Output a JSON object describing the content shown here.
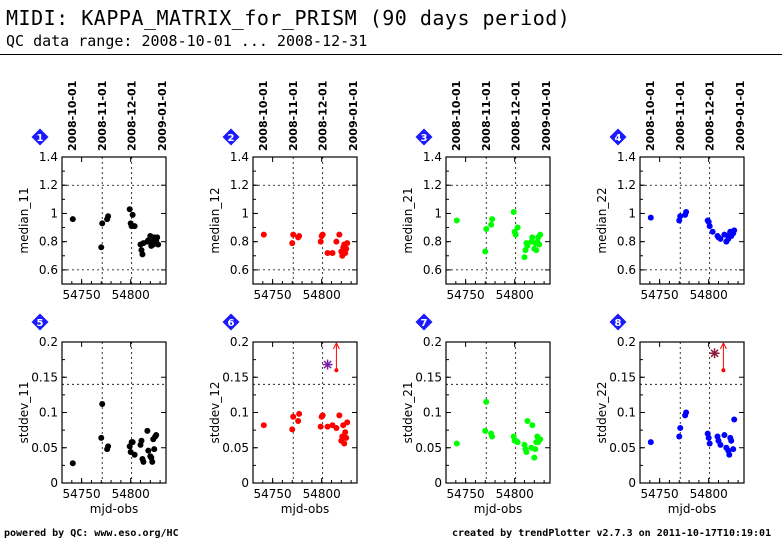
{
  "header": {
    "title": "MIDI: KAPPA_MATRIX_for_PRISM (90 days period)",
    "subtitle": "QC data range: 2008-10-01 ... 2008-12-31"
  },
  "footer": {
    "left": "powered by QC: www.eso.org/HC",
    "right": "created by trendPlotter v2.7.3 on 2011-10-17T10:19:01"
  },
  "colors": {
    "black": "#000000",
    "red": "#ff0000",
    "green": "#00ff00",
    "blue": "#0000ff",
    "badge": "#1a1aff",
    "purple": "#7a1fa2",
    "maroon": "#8b1c3a"
  },
  "chart_data": [
    {
      "type": "scatter",
      "index": "1",
      "ylabel": "median_11",
      "color": "#000000",
      "top_ticks": [
        "2008-10-01",
        "2008-11-01",
        "2008-12-01",
        "2009-01-01"
      ],
      "top_tick_x": [
        54740,
        54771,
        54801,
        54832
      ],
      "xlim": [
        54730,
        54836
      ],
      "ylim": [
        0.5,
        1.4
      ],
      "yticks": [
        0.6,
        0.8,
        1,
        1.2,
        1.4
      ],
      "yticklabels": [
        "0.6",
        "0.8",
        "1",
        "1.2",
        "1.4"
      ],
      "xticks": [
        54750,
        54800
      ],
      "xticklabels": [
        "54750",
        "54800"
      ],
      "dashed_y": [
        0.6,
        1.2
      ],
      "show_xlabel": false,
      "x": [
        54741,
        54770,
        54771,
        54776,
        54777,
        54799,
        54800,
        54801,
        54802,
        54804,
        54810,
        54811,
        54812,
        54813,
        54817,
        54818,
        54820,
        54821,
        54822,
        54823,
        54824,
        54825,
        54826,
        54827,
        54828
      ],
      "y": [
        0.96,
        0.76,
        0.93,
        0.96,
        0.98,
        1.03,
        0.93,
        0.91,
        0.99,
        0.91,
        0.78,
        0.74,
        0.71,
        0.79,
        0.8,
        0.81,
        0.84,
        0.77,
        0.8,
        0.78,
        0.83,
        0.79,
        0.81,
        0.83,
        0.78
      ]
    },
    {
      "type": "scatter",
      "index": "2",
      "ylabel": "median_12",
      "color": "#ff0000",
      "top_ticks": [
        "2008-10-01",
        "2008-11-01",
        "2008-12-01",
        "2009-01-01"
      ],
      "top_tick_x": [
        54740,
        54771,
        54801,
        54832
      ],
      "xlim": [
        54730,
        54836
      ],
      "ylim": [
        0.5,
        1.4
      ],
      "yticks": [
        0.6,
        0.8,
        1,
        1.2,
        1.4
      ],
      "yticklabels": [
        "0.6",
        "0.8",
        "1",
        "1.2",
        "1.4"
      ],
      "xticks": [
        54750,
        54800
      ],
      "xticklabels": [
        "54750",
        "54800"
      ],
      "dashed_y": [
        0.6,
        1.2
      ],
      "show_xlabel": false,
      "x": [
        54741,
        54770,
        54771,
        54776,
        54777,
        54799,
        54800,
        54801,
        54806,
        54811,
        54815,
        54818,
        54820,
        54821,
        54822,
        54823,
        54824,
        54825,
        54826
      ],
      "y": [
        0.85,
        0.79,
        0.85,
        0.83,
        0.84,
        0.8,
        0.84,
        0.85,
        0.72,
        0.72,
        0.8,
        0.85,
        0.73,
        0.7,
        0.76,
        0.78,
        0.72,
        0.75,
        0.79
      ]
    },
    {
      "type": "scatter",
      "index": "3",
      "ylabel": "median_21",
      "color": "#00ff00",
      "top_ticks": [
        "2008-10-01",
        "2008-11-01",
        "2008-12-01",
        "2009-01-01"
      ],
      "top_tick_x": [
        54740,
        54771,
        54801,
        54832
      ],
      "xlim": [
        54730,
        54836
      ],
      "ylim": [
        0.5,
        1.4
      ],
      "yticks": [
        0.6,
        0.8,
        1,
        1.2,
        1.4
      ],
      "yticklabels": [
        "0.6",
        "0.8",
        "1",
        "1.2",
        "1.4"
      ],
      "xticks": [
        54750,
        54800
      ],
      "xticklabels": [
        "54750",
        "54800"
      ],
      "dashed_y": [
        0.6,
        1.2
      ],
      "show_xlabel": false,
      "x": [
        54741,
        54770,
        54771,
        54776,
        54777,
        54799,
        54800,
        54801,
        54803,
        54810,
        54811,
        54812,
        54813,
        54817,
        54818,
        54820,
        54821,
        54822,
        54823,
        54824,
        54825,
        54826
      ],
      "y": [
        0.95,
        0.73,
        0.89,
        0.92,
        0.96,
        1.01,
        0.87,
        0.85,
        0.9,
        0.69,
        0.74,
        0.79,
        0.77,
        0.8,
        0.83,
        0.75,
        0.79,
        0.74,
        0.8,
        0.83,
        0.78,
        0.85
      ]
    },
    {
      "type": "scatter",
      "index": "4",
      "ylabel": "median_22",
      "color": "#0000ff",
      "top_ticks": [
        "2008-10-01",
        "2008-11-01",
        "2008-12-01",
        "2009-01-01"
      ],
      "top_tick_x": [
        54740,
        54771,
        54801,
        54832
      ],
      "xlim": [
        54730,
        54836
      ],
      "ylim": [
        0.5,
        1.4
      ],
      "yticks": [
        0.6,
        0.8,
        1,
        1.2,
        1.4
      ],
      "yticklabels": [
        "0.6",
        "0.8",
        "1",
        "1.2",
        "1.4"
      ],
      "xticks": [
        54750,
        54800
      ],
      "xticklabels": [
        "54750",
        "54800"
      ],
      "dashed_y": [
        0.6,
        1.2
      ],
      "show_xlabel": false,
      "x": [
        54741,
        54770,
        54771,
        54776,
        54777,
        54799,
        54800,
        54801,
        54804,
        54809,
        54810,
        54812,
        54816,
        54818,
        54820,
        54821,
        54822,
        54823,
        54825,
        54826
      ],
      "y": [
        0.97,
        0.95,
        0.98,
        0.99,
        1.01,
        0.95,
        0.94,
        0.91,
        0.87,
        0.84,
        0.83,
        0.82,
        0.85,
        0.8,
        0.82,
        0.85,
        0.87,
        0.84,
        0.86,
        0.88
      ]
    },
    {
      "type": "scatter",
      "index": "5",
      "ylabel": "stddev_11",
      "xlabel": "mjd-obs",
      "color": "#000000",
      "xlim": [
        54730,
        54836
      ],
      "ylim": [
        0,
        0.2
      ],
      "yticks": [
        0,
        0.05,
        0.1,
        0.15,
        0.2
      ],
      "yticklabels": [
        "0",
        "0.05",
        "0.1",
        "0.15",
        "0.2"
      ],
      "xticks": [
        54750,
        54800
      ],
      "xticklabels": [
        "54750",
        "54800"
      ],
      "dashed_y": [
        0.14
      ],
      "show_xlabel": true,
      "x": [
        54741,
        54770,
        54771,
        54776,
        54777,
        54799,
        54800,
        54801,
        54802,
        54804,
        54810,
        54811,
        54812,
        54813,
        54817,
        54818,
        54820,
        54821,
        54822,
        54823,
        54824,
        54825,
        54826
      ],
      "y": [
        0.028,
        0.064,
        0.112,
        0.048,
        0.052,
        0.052,
        0.044,
        0.058,
        0.058,
        0.04,
        0.054,
        0.06,
        0.034,
        0.03,
        0.074,
        0.046,
        0.038,
        0.036,
        0.03,
        0.062,
        0.048,
        0.066,
        0.068
      ]
    },
    {
      "type": "scatter",
      "index": "6",
      "ylabel": "stddev_12",
      "xlabel": "mjd-obs",
      "color": "#ff0000",
      "xlim": [
        54730,
        54836
      ],
      "ylim": [
        0,
        0.2
      ],
      "yticks": [
        0,
        0.05,
        0.1,
        0.15,
        0.2
      ],
      "yticklabels": [
        "0",
        "0.05",
        "0.1",
        "0.15",
        "0.2"
      ],
      "xticks": [
        54750,
        54800
      ],
      "xticklabels": [
        "54750",
        "54800"
      ],
      "dashed_y": [
        0.14
      ],
      "show_xlabel": true,
      "x": [
        54741,
        54770,
        54771,
        54776,
        54777,
        54799,
        54800,
        54801,
        54806,
        54811,
        54815,
        54818,
        54820,
        54821,
        54822,
        54823,
        54824,
        54825,
        54826
      ],
      "y": [
        0.082,
        0.076,
        0.094,
        0.088,
        0.098,
        0.08,
        0.094,
        0.096,
        0.08,
        0.082,
        0.078,
        0.096,
        0.06,
        0.066,
        0.082,
        0.056,
        0.072,
        0.064,
        0.086
      ],
      "special_points": [
        {
          "x": 54806,
          "y": 0.168,
          "color": "#7a1fa2"
        }
      ],
      "arrow_up": [
        {
          "x": 54815,
          "y": 0.16
        }
      ]
    },
    {
      "type": "scatter",
      "index": "7",
      "ylabel": "stddev_21",
      "xlabel": "mjd-obs",
      "color": "#00ff00",
      "xlim": [
        54730,
        54836
      ],
      "ylim": [
        0,
        0.2
      ],
      "yticks": [
        0,
        0.05,
        0.1,
        0.15,
        0.2
      ],
      "yticklabels": [
        "0",
        "0.05",
        "0.1",
        "0.15",
        "0.2"
      ],
      "xticks": [
        54750,
        54800
      ],
      "xticklabels": [
        "54750",
        "54800"
      ],
      "dashed_y": [
        0.14
      ],
      "show_xlabel": true,
      "x": [
        54741,
        54770,
        54771,
        54776,
        54777,
        54799,
        54800,
        54801,
        54803,
        54810,
        54811,
        54812,
        54813,
        54817,
        54818,
        54820,
        54821,
        54822,
        54823,
        54824,
        54825,
        54826
      ],
      "y": [
        0.056,
        0.074,
        0.115,
        0.07,
        0.066,
        0.066,
        0.06,
        0.06,
        0.058,
        0.054,
        0.048,
        0.044,
        0.088,
        0.05,
        0.082,
        0.036,
        0.048,
        0.058,
        0.066,
        0.058,
        0.062,
        0.062
      ]
    },
    {
      "type": "scatter",
      "index": "8",
      "ylabel": "stddev_22",
      "xlabel": "mjd-obs",
      "color": "#0000ff",
      "xlim": [
        54730,
        54836
      ],
      "ylim": [
        0,
        0.2
      ],
      "yticks": [
        0,
        0.05,
        0.1,
        0.15,
        0.2
      ],
      "yticklabels": [
        "0",
        "0.05",
        "0.1",
        "0.15",
        "0.2"
      ],
      "xticks": [
        54750,
        54800
      ],
      "xticklabels": [
        "54750",
        "54800"
      ],
      "dashed_y": [
        0.14
      ],
      "show_xlabel": true,
      "x": [
        54741,
        54770,
        54771,
        54776,
        54777,
        54799,
        54800,
        54801,
        54809,
        54810,
        54812,
        54816,
        54818,
        54820,
        54821,
        54822,
        54823,
        54825,
        54826
      ],
      "y": [
        0.058,
        0.066,
        0.078,
        0.096,
        0.1,
        0.07,
        0.064,
        0.056,
        0.066,
        0.06,
        0.054,
        0.068,
        0.05,
        0.046,
        0.04,
        0.064,
        0.06,
        0.048,
        0.09
      ],
      "special_points": [
        {
          "x": 54806,
          "y": 0.184,
          "color": "#8b1c3a"
        }
      ],
      "arrow_up": [
        {
          "x": 54815,
          "y": 0.16
        }
      ]
    }
  ]
}
